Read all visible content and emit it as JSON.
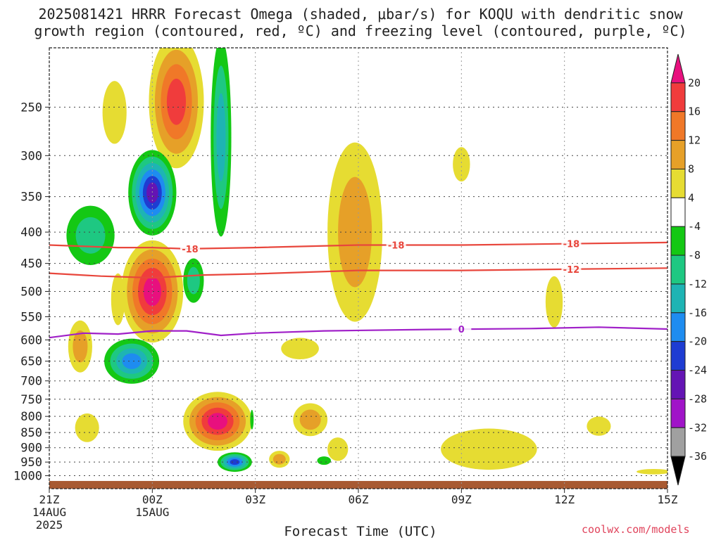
{
  "title": {
    "line1": "2025081421 HRRR Forecast Omega (shaded, μbar/s) for KOQU with dendritic snow",
    "line2": "growth region (contoured, red, ºC) and freezing level (contoured, purple, ºC)"
  },
  "credit": "coolwx.com/models",
  "chart_data": {
    "type": "heatmap",
    "xlabel": "Forecast Time (UTC)",
    "ylabel": "",
    "y_scale": "log",
    "y_reversed": true,
    "xlim": [
      0,
      18
    ],
    "ylim": [
      1050,
      200
    ],
    "grid": true,
    "x_ticks": [
      {
        "x": 0,
        "label": "21Z",
        "sublabel": "14AUG",
        "sublabel2": "2025"
      },
      {
        "x": 3,
        "label": "00Z",
        "sublabel": "15AUG",
        "sublabel2": ""
      },
      {
        "x": 6,
        "label": "03Z",
        "sublabel": "",
        "sublabel2": ""
      },
      {
        "x": 9,
        "label": "06Z",
        "sublabel": "",
        "sublabel2": ""
      },
      {
        "x": 12,
        "label": "09Z",
        "sublabel": "",
        "sublabel2": ""
      },
      {
        "x": 15,
        "label": "12Z",
        "sublabel": "",
        "sublabel2": ""
      },
      {
        "x": 18,
        "label": "15Z",
        "sublabel": "",
        "sublabel2": ""
      }
    ],
    "y_ticks": [
      250,
      300,
      350,
      400,
      450,
      500,
      550,
      600,
      650,
      700,
      750,
      800,
      850,
      900,
      950,
      1000
    ],
    "colorbar": {
      "ticks": [
        "20",
        "16",
        "12",
        "8",
        "4",
        "-4",
        "-8",
        "-12",
        "-16",
        "-20",
        "-24",
        "-28",
        "-32",
        "-36"
      ],
      "levels": [
        {
          "range": "20+",
          "color": "#e8107e"
        },
        {
          "range": "16 to 20",
          "color": "#f03c3c"
        },
        {
          "range": "12 to 16",
          "color": "#f07828"
        },
        {
          "range": "8 to 12",
          "color": "#e6a028"
        },
        {
          "range": "4 to 8",
          "color": "#e6dc32"
        },
        {
          "range": "-4 to 4",
          "color": "#ffffff"
        },
        {
          "range": "-8 to -4",
          "color": "#14c814"
        },
        {
          "range": "-12 to -8",
          "color": "#1ec882"
        },
        {
          "range": "-16 to -12",
          "color": "#1eb4b4"
        },
        {
          "range": "-20 to -16",
          "color": "#1e8cf0"
        },
        {
          "range": "-24 to -20",
          "color": "#1e3cd2"
        },
        {
          "range": "-28 to -24",
          "color": "#6414b4"
        },
        {
          "range": "-32 to -28",
          "color": "#a014c8"
        },
        {
          "range": "-36 to -32",
          "color": "#a0a0a0"
        },
        {
          "range": "below -36",
          "color": "#000000"
        }
      ]
    },
    "omega_features": [
      {
        "x": 1.9,
        "p": 255,
        "rx": 0.35,
        "ry_mb": 30,
        "levels": [
          4
        ]
      },
      {
        "x": 3.7,
        "p": 245,
        "rx": 0.8,
        "ry_mb": 60,
        "levels": [
          4,
          8,
          12,
          16
        ]
      },
      {
        "x": 3.0,
        "p": 345,
        "rx": 0.7,
        "ry_mb": 55,
        "levels": [
          -4,
          -8,
          -12,
          -16,
          -20,
          -24
        ]
      },
      {
        "x": 1.2,
        "p": 405,
        "rx": 0.7,
        "ry_mb": 45,
        "levels": [
          -4,
          -8
        ]
      },
      {
        "x": 5.0,
        "p": 280,
        "rx": 0.3,
        "ry_mb": 100,
        "levels": [
          -4,
          -8,
          -12
        ]
      },
      {
        "x": 3.0,
        "p": 500,
        "rx": 0.9,
        "ry_mb": 95,
        "levels": [
          4,
          8,
          12,
          16,
          20
        ]
      },
      {
        "x": 4.2,
        "p": 480,
        "rx": 0.3,
        "ry_mb": 40,
        "levels": [
          -4,
          -8
        ]
      },
      {
        "x": 2.0,
        "p": 515,
        "rx": 0.2,
        "ry_mb": 50,
        "levels": [
          4
        ]
      },
      {
        "x": 0.9,
        "p": 615,
        "rx": 0.35,
        "ry_mb": 60,
        "levels": [
          4,
          8
        ]
      },
      {
        "x": 2.4,
        "p": 650,
        "rx": 0.8,
        "ry_mb": 55,
        "levels": [
          -4,
          -8,
          -12,
          -16
        ]
      },
      {
        "x": 8.9,
        "p": 400,
        "rx": 0.8,
        "ry_mb": 130,
        "levels": [
          4,
          8
        ]
      },
      {
        "x": 12.0,
        "p": 310,
        "rx": 0.25,
        "ry_mb": 20,
        "levels": [
          4
        ]
      },
      {
        "x": 14.7,
        "p": 520,
        "rx": 0.25,
        "ry_mb": 50,
        "levels": [
          4
        ]
      },
      {
        "x": 7.3,
        "p": 620,
        "rx": 0.55,
        "ry_mb": 25,
        "levels": [
          4
        ]
      },
      {
        "x": 4.9,
        "p": 815,
        "rx": 1.0,
        "ry_mb": 90,
        "levels": [
          4,
          8,
          12,
          16,
          20
        ]
      },
      {
        "x": 7.6,
        "p": 810,
        "rx": 0.5,
        "ry_mb": 50,
        "levels": [
          4,
          8
        ]
      },
      {
        "x": 5.9,
        "p": 810,
        "rx": 0.05,
        "ry_mb": 30,
        "levels": [
          -4
        ]
      },
      {
        "x": 8.4,
        "p": 905,
        "rx": 0.3,
        "ry_mb": 40,
        "levels": [
          4
        ]
      },
      {
        "x": 5.4,
        "p": 950,
        "rx": 0.5,
        "ry_mb": 35,
        "levels": [
          -4,
          -8,
          -12,
          -16,
          -20
        ]
      },
      {
        "x": 6.7,
        "p": 940,
        "rx": 0.3,
        "ry_mb": 30,
        "levels": [
          4,
          8
        ]
      },
      {
        "x": 8.0,
        "p": 945,
        "rx": 0.2,
        "ry_mb": 15,
        "levels": [
          -4
        ]
      },
      {
        "x": 1.1,
        "p": 835,
        "rx": 0.35,
        "ry_mb": 45,
        "levels": [
          4
        ]
      },
      {
        "x": 12.8,
        "p": 905,
        "rx": 1.4,
        "ry_mb": 70,
        "levels": [
          4
        ]
      },
      {
        "x": 16.0,
        "p": 830,
        "rx": 0.35,
        "ry_mb": 30,
        "levels": [
          4
        ]
      },
      {
        "x": 17.6,
        "p": 985,
        "rx": 0.5,
        "ry_mb": 10,
        "levels": [
          4
        ]
      }
    ],
    "contours": [
      {
        "label": "-18",
        "color": "#e8463c",
        "x": [
          0,
          2,
          3,
          4,
          6,
          9,
          12,
          15,
          18
        ],
        "p": [
          420,
          424,
          424,
          426,
          424,
          420,
          420,
          418,
          416
        ],
        "label_positions": [
          4.1,
          10.1,
          15.2
        ]
      },
      {
        "label": "-12",
        "color": "#e8463c",
        "x": [
          0,
          1.5,
          3,
          4.5,
          6,
          9,
          12,
          15,
          18
        ],
        "p": [
          467,
          472,
          475,
          470,
          468,
          462,
          462,
          460,
          458
        ],
        "label_positions": [
          15.2
        ]
      },
      {
        "label": "0",
        "color": "#a020c8",
        "x": [
          0,
          1,
          2,
          3,
          4,
          5,
          6,
          8,
          11,
          14,
          16,
          18
        ],
        "p": [
          595,
          585,
          587,
          580,
          580,
          590,
          585,
          580,
          577,
          575,
          572,
          576
        ],
        "label_positions": [
          12.0
        ]
      }
    ],
    "surface_bar": {
      "p_top": 1020,
      "color": "#a85a32"
    }
  },
  "axes": {
    "xlabel": "Forecast Time (UTC)"
  }
}
